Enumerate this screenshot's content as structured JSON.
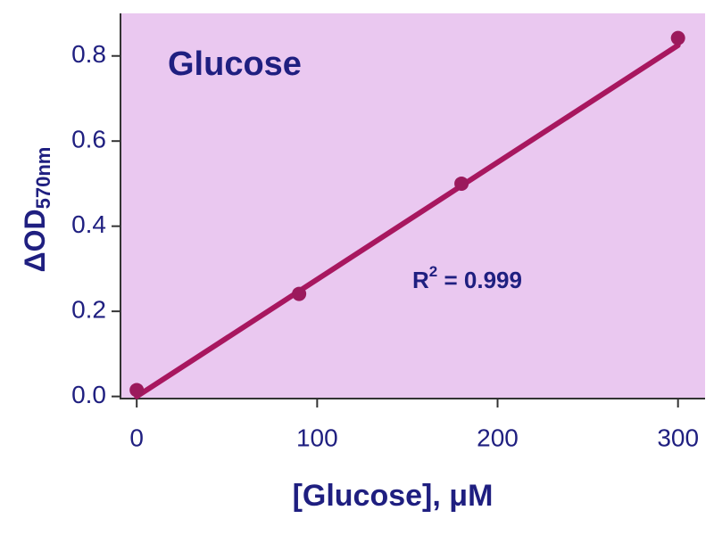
{
  "chart_data": {
    "type": "scatter",
    "title": "Glucose",
    "x_label": "[Glucose], μM",
    "y_label": {
      "main": "ΔOD",
      "sub": "570nm"
    },
    "annotation": {
      "base": "R",
      "sup": "2",
      "text": " = 0.999"
    },
    "x": [
      0,
      90,
      180,
      300
    ],
    "values": [
      0.015,
      0.241,
      0.5,
      0.842
    ],
    "color": "#9b1a5c",
    "fit": {
      "x": [
        0,
        300
      ],
      "values": [
        0,
        0.825
      ],
      "color": "#a8175f"
    },
    "xlim": [
      -9,
      315
    ],
    "ylim": [
      -0.005,
      0.9
    ],
    "xticks": [
      0,
      100,
      200,
      300
    ],
    "yticks": [
      {
        "value": 0,
        "label": "0.0"
      },
      0.2,
      0.4,
      0.6,
      0.8
    ],
    "plot_background": "#eac8f0",
    "text_color": "#1f1f80"
  }
}
